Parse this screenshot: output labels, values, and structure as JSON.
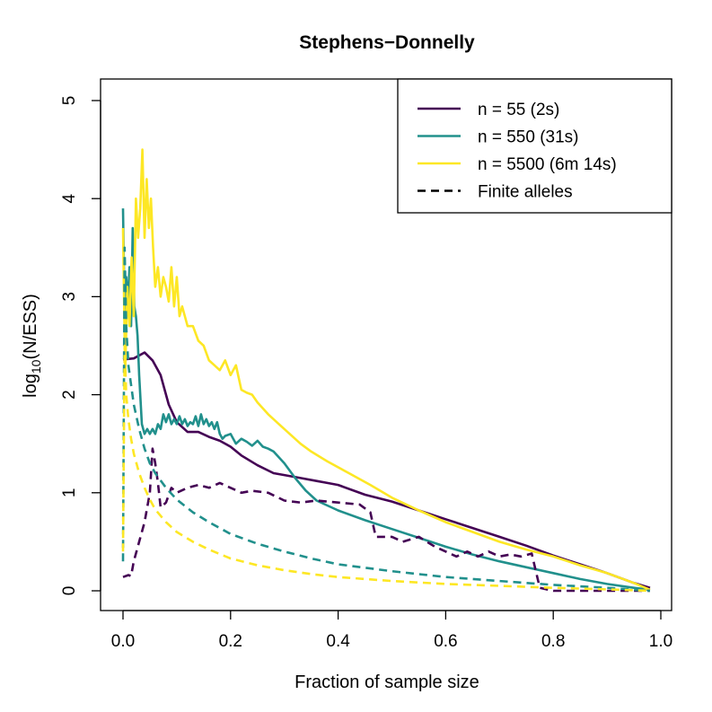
{
  "chart_data": {
    "type": "line",
    "title": "Stephens−Donnelly",
    "xlabel": "Fraction of sample size",
    "ylabel": {
      "prefix": "log",
      "subscript": "10",
      "suffix": "(N/ESS)"
    },
    "xlim": [
      0,
      1
    ],
    "ylim": [
      0,
      5
    ],
    "xticks": [
      0.0,
      0.2,
      0.4,
      0.6,
      0.8,
      1.0
    ],
    "xtick_labels": [
      "0.0",
      "0.2",
      "0.4",
      "0.6",
      "0.8",
      "1.0"
    ],
    "yticks": [
      0,
      1,
      2,
      3,
      4,
      5
    ],
    "ytick_labels": [
      "0",
      "1",
      "2",
      "3",
      "4",
      "5"
    ],
    "grid": false,
    "legend_placement": "top-right",
    "legend": [
      {
        "label": "n = 55 (2s)",
        "color": "#440154",
        "dash": false
      },
      {
        "label": "n = 550 (31s)",
        "color": "#21908C",
        "dash": false
      },
      {
        "label": "n = 5500 (6m 14s)",
        "color": "#FDE725",
        "dash": false
      },
      {
        "label": "Finite alleles",
        "color": "#000000",
        "dash": true
      }
    ],
    "series": [
      {
        "name": "n = 55 (2s)",
        "color": "#440154",
        "dash": false,
        "x": [
          0.0,
          0.02,
          0.04,
          0.055,
          0.07,
          0.085,
          0.1,
          0.12,
          0.14,
          0.16,
          0.18,
          0.2,
          0.22,
          0.25,
          0.28,
          0.3,
          0.33,
          0.36,
          0.38,
          0.4,
          0.45,
          0.5,
          0.55,
          0.6,
          0.65,
          0.7,
          0.75,
          0.8,
          0.85,
          0.9,
          0.95,
          0.98
        ],
        "y": [
          2.36,
          2.37,
          2.43,
          2.35,
          2.2,
          1.9,
          1.72,
          1.62,
          1.62,
          1.57,
          1.53,
          1.47,
          1.38,
          1.28,
          1.2,
          1.18,
          1.15,
          1.12,
          1.1,
          1.08,
          0.98,
          0.91,
          0.82,
          0.73,
          0.64,
          0.55,
          0.46,
          0.36,
          0.27,
          0.18,
          0.08,
          0.03
        ]
      },
      {
        "name": "n = 550 (31s)",
        "color": "#21908C",
        "dash": false,
        "x": [
          0.0,
          0.003,
          0.006,
          0.009,
          0.012,
          0.015,
          0.018,
          0.021,
          0.024,
          0.027,
          0.03,
          0.035,
          0.04,
          0.045,
          0.05,
          0.055,
          0.06,
          0.065,
          0.07,
          0.075,
          0.08,
          0.085,
          0.09,
          0.095,
          0.1,
          0.105,
          0.11,
          0.115,
          0.12,
          0.125,
          0.13,
          0.135,
          0.14,
          0.145,
          0.15,
          0.155,
          0.16,
          0.165,
          0.17,
          0.175,
          0.18,
          0.185,
          0.19,
          0.2,
          0.21,
          0.22,
          0.23,
          0.24,
          0.25,
          0.26,
          0.27,
          0.28,
          0.3,
          0.32,
          0.34,
          0.36,
          0.4,
          0.45,
          0.5,
          0.55,
          0.6,
          0.65,
          0.7,
          0.75,
          0.8,
          0.85,
          0.9,
          0.95,
          0.98
        ],
        "y": [
          3.9,
          2.8,
          3.2,
          2.9,
          3.3,
          2.7,
          3.7,
          2.9,
          2.8,
          2.6,
          2.2,
          1.7,
          1.6,
          1.65,
          1.6,
          1.65,
          1.6,
          1.7,
          1.65,
          1.8,
          1.72,
          1.8,
          1.7,
          1.75,
          1.7,
          1.78,
          1.7,
          1.75,
          1.68,
          1.72,
          1.7,
          1.78,
          1.68,
          1.8,
          1.7,
          1.75,
          1.68,
          1.72,
          1.65,
          1.72,
          1.6,
          1.55,
          1.58,
          1.6,
          1.5,
          1.55,
          1.52,
          1.48,
          1.53,
          1.47,
          1.45,
          1.42,
          1.3,
          1.15,
          1.02,
          0.92,
          0.82,
          0.72,
          0.63,
          0.54,
          0.45,
          0.37,
          0.3,
          0.24,
          0.18,
          0.12,
          0.07,
          0.03,
          0.01
        ]
      },
      {
        "name": "n = 5500 (6m 14s)",
        "color": "#FDE725",
        "dash": false,
        "x": [
          0.0,
          0.004,
          0.008,
          0.012,
          0.016,
          0.02,
          0.024,
          0.028,
          0.032,
          0.036,
          0.04,
          0.044,
          0.048,
          0.052,
          0.056,
          0.06,
          0.065,
          0.07,
          0.075,
          0.08,
          0.085,
          0.09,
          0.095,
          0.1,
          0.105,
          0.11,
          0.12,
          0.13,
          0.14,
          0.15,
          0.16,
          0.17,
          0.18,
          0.19,
          0.2,
          0.21,
          0.22,
          0.23,
          0.24,
          0.25,
          0.27,
          0.29,
          0.31,
          0.33,
          0.35,
          0.38,
          0.42,
          0.46,
          0.5,
          0.55,
          0.6,
          0.65,
          0.7,
          0.75,
          0.8,
          0.85,
          0.9,
          0.95,
          0.98
        ],
        "y": [
          3.7,
          2.2,
          3.1,
          2.7,
          3.4,
          2.8,
          4.0,
          3.6,
          3.9,
          4.5,
          3.6,
          4.2,
          3.7,
          4.0,
          3.5,
          3.1,
          3.3,
          3.0,
          3.2,
          3.1,
          2.95,
          3.3,
          2.9,
          3.2,
          2.8,
          2.9,
          2.7,
          2.7,
          2.55,
          2.5,
          2.35,
          2.3,
          2.25,
          2.35,
          2.2,
          2.3,
          2.05,
          2.02,
          2.0,
          1.92,
          1.8,
          1.7,
          1.6,
          1.5,
          1.42,
          1.32,
          1.2,
          1.08,
          0.95,
          0.82,
          0.7,
          0.6,
          0.5,
          0.42,
          0.35,
          0.26,
          0.18,
          0.08,
          0.01
        ]
      },
      {
        "name": "",
        "color": "#440154",
        "dash": true,
        "x": [
          0.0,
          0.01,
          0.015,
          0.02,
          0.03,
          0.04,
          0.05,
          0.055,
          0.06,
          0.065,
          0.07,
          0.08,
          0.09,
          0.1,
          0.12,
          0.14,
          0.16,
          0.18,
          0.2,
          0.22,
          0.24,
          0.27,
          0.3,
          0.33,
          0.36,
          0.4,
          0.44,
          0.46,
          0.47,
          0.5,
          0.52,
          0.55,
          0.58,
          0.6,
          0.62,
          0.64,
          0.66,
          0.68,
          0.7,
          0.72,
          0.74,
          0.76,
          0.775,
          0.8,
          0.85,
          0.9,
          0.95,
          0.98
        ],
        "y": [
          0.14,
          0.16,
          0.15,
          0.3,
          0.5,
          0.7,
          1.0,
          1.45,
          1.3,
          1.1,
          0.85,
          0.9,
          1.05,
          1.0,
          1.05,
          1.08,
          1.05,
          1.1,
          1.05,
          1.0,
          1.02,
          1.0,
          0.92,
          0.9,
          0.92,
          0.9,
          0.88,
          0.8,
          0.55,
          0.55,
          0.5,
          0.55,
          0.45,
          0.4,
          0.35,
          0.4,
          0.35,
          0.4,
          0.35,
          0.37,
          0.35,
          0.38,
          0.03,
          0.0,
          0.0,
          0.0,
          0.0,
          0.0
        ]
      },
      {
        "name": "",
        "color": "#21908C",
        "dash": true,
        "x": [
          0.0,
          0.003,
          0.006,
          0.01,
          0.015,
          0.02,
          0.03,
          0.04,
          0.05,
          0.06,
          0.08,
          0.1,
          0.13,
          0.16,
          0.2,
          0.25,
          0.3,
          0.35,
          0.4,
          0.5,
          0.6,
          0.7,
          0.8,
          0.9,
          0.98
        ],
        "y": [
          0.3,
          3.5,
          2.7,
          2.3,
          2.1,
          1.9,
          1.65,
          1.45,
          1.3,
          1.2,
          1.05,
          0.93,
          0.8,
          0.7,
          0.58,
          0.48,
          0.4,
          0.33,
          0.27,
          0.2,
          0.14,
          0.1,
          0.06,
          0.03,
          0.0
        ]
      },
      {
        "name": "",
        "color": "#FDE725",
        "dash": true,
        "x": [
          0.0,
          0.003,
          0.006,
          0.01,
          0.015,
          0.02,
          0.03,
          0.04,
          0.05,
          0.06,
          0.08,
          0.1,
          0.13,
          0.16,
          0.2,
          0.25,
          0.3,
          0.35,
          0.4,
          0.5,
          0.6,
          0.7,
          0.8,
          0.9,
          0.98
        ],
        "y": [
          0.4,
          2.5,
          2.0,
          1.75,
          1.55,
          1.4,
          1.2,
          1.05,
          0.93,
          0.83,
          0.7,
          0.6,
          0.5,
          0.42,
          0.33,
          0.26,
          0.21,
          0.17,
          0.14,
          0.1,
          0.07,
          0.05,
          0.03,
          0.015,
          0.0
        ]
      }
    ]
  }
}
